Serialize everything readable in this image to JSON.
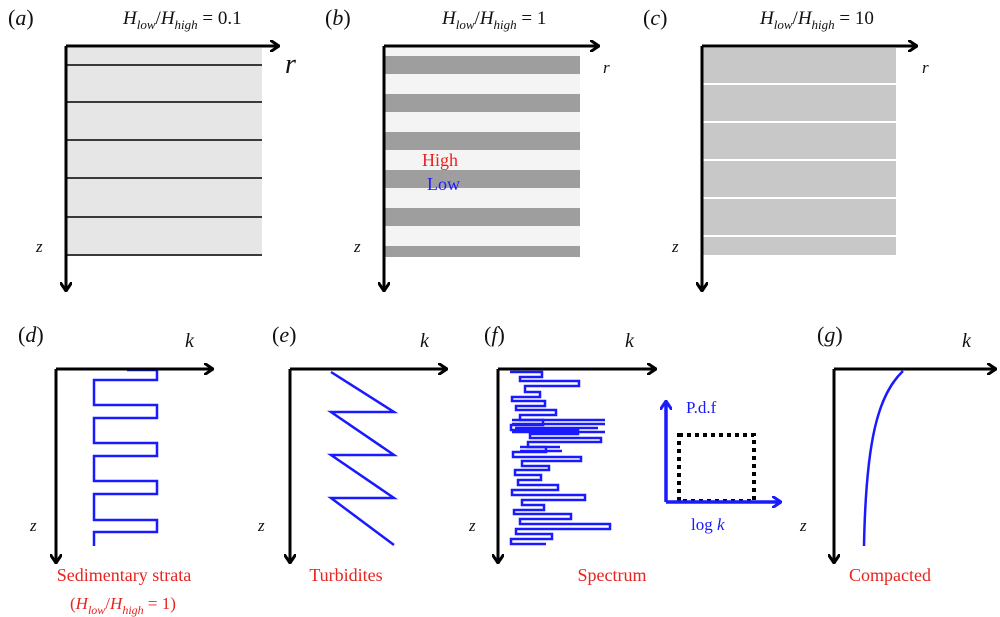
{
  "panels": {
    "a": {
      "tag_open": "(",
      "tag_letter": "a",
      "tag_close": ")",
      "title": {
        "H1": "H",
        "sub1": "low",
        "slash": "/",
        "H2": "H",
        "sub2": "high",
        "eq": " = 0.1"
      },
      "axis_h": "r",
      "axis_v": "z"
    },
    "b": {
      "tag_open": "(",
      "tag_letter": "b",
      "tag_close": ")",
      "title": {
        "H1": "H",
        "sub1": "low",
        "slash": "/",
        "H2": "H",
        "sub2": "high",
        "eq": " = 1"
      },
      "axis_h": "r",
      "axis_v": "z",
      "high_label": "High",
      "low_label": "Low"
    },
    "c": {
      "tag_open": "(",
      "tag_letter": "c",
      "tag_close": ")",
      "title": {
        "H1": "H",
        "sub1": "low",
        "slash": "/",
        "H2": "H",
        "sub2": "high",
        "eq": " = 10"
      },
      "axis_h": "r",
      "axis_v": "z"
    },
    "d": {
      "tag_open": "(",
      "tag_letter": "d",
      "tag_close": ")",
      "axis_h": "k",
      "axis_v": "z",
      "caption": "Sedimentary strata",
      "caption2": {
        "open": "(",
        "H1": "H",
        "sub1": "low",
        "slash": "/",
        "H2": "H",
        "sub2": "high",
        "eq": " = 1)"
      }
    },
    "e": {
      "tag_open": "(",
      "tag_letter": "e",
      "tag_close": ")",
      "axis_h": "k",
      "axis_v": "z",
      "caption": "Turbidites"
    },
    "f": {
      "tag_open": "(",
      "tag_letter": "f",
      "tag_close": ")",
      "axis_h": "k",
      "axis_v": "z",
      "caption": "Spectrum",
      "inset": {
        "y_label": "P.d.f",
        "x_label_prefix": "log ",
        "x_label_var": "k"
      }
    },
    "g": {
      "tag_open": "(",
      "tag_letter": "g",
      "tag_close": ")",
      "axis_h": "k",
      "axis_v": "z",
      "caption": "Compacted"
    }
  },
  "colors": {
    "axis": "#000000",
    "profile": "#1a1aff",
    "caption": "#e8231f",
    "fill_a": "#e6e6e6",
    "high_band": "#9e9e9e",
    "low_band": "#f4f4f4",
    "fill_c": "#c8c8c8"
  }
}
